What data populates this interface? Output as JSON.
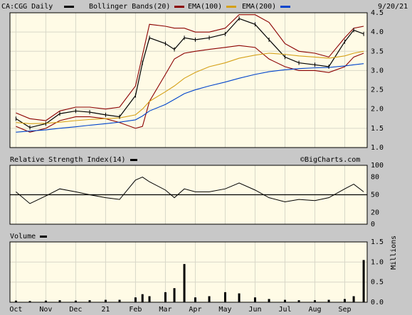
{
  "header": {
    "ticker_label": "CA:CGG Daily",
    "bollinger_label": "Bollinger Bands(20)",
    "ema100_label": "EMA(100)",
    "ema200_label": "EMA(200)",
    "date_label": "9/20/21"
  },
  "rsi_panel": {
    "title": "Relative Strength Index(14)",
    "watermark": "©BigCharts.com"
  },
  "volume_panel": {
    "title": "Volume",
    "unit_label": "Millions"
  },
  "colors": {
    "price": "#000000",
    "bollinger": "#8b0000",
    "ema100": "#d4a017",
    "ema200": "#0044cc",
    "panel_bg": "#fffbe6",
    "frame_bg": "#c8c8c8",
    "grid": "#d8d8c8"
  },
  "chart_data": [
    {
      "type": "line",
      "panel": "price",
      "xlabel": "",
      "ylabel": "",
      "x_tick_labels": [
        "Oct",
        "Nov",
        "Dec",
        "21",
        "Feb",
        "Mar",
        "Apr",
        "May",
        "Jun",
        "Jul",
        "Aug",
        "Sep"
      ],
      "ylim": [
        1.0,
        4.5
      ],
      "y_ticks": [
        "1.0",
        "1.5",
        "2.0",
        "2.5",
        "3.0",
        "3.5",
        "4.0",
        "4.5"
      ],
      "grid": true,
      "legend": "top",
      "x": [
        "Oct 1",
        "Oct 15",
        "Nov 1",
        "Nov 15",
        "Dec 1",
        "Dec 15",
        "Jan 1",
        "Jan 15",
        "Feb 1",
        "Feb 8",
        "Feb 15",
        "Mar 1",
        "Mar 10",
        "Mar 20",
        "Apr 1",
        "Apr 15",
        "May 1",
        "May 15",
        "Jun 1",
        "Jun 15",
        "Jul 1",
        "Jul 15",
        "Aug 1",
        "Aug 15",
        "Sep 1",
        "Sep 10",
        "Sep 20"
      ],
      "series": [
        {
          "name": "CA:CGG Daily",
          "values": [
            1.75,
            1.52,
            1.62,
            1.88,
            1.95,
            1.92,
            1.85,
            1.8,
            2.35,
            3.2,
            3.85,
            3.7,
            3.55,
            3.85,
            3.8,
            3.85,
            3.95,
            4.35,
            4.2,
            3.8,
            3.35,
            3.2,
            3.15,
            3.1,
            3.75,
            4.05,
            3.95
          ]
        },
        {
          "name": "Bollinger upper",
          "values": [
            1.9,
            1.75,
            1.7,
            1.95,
            2.05,
            2.05,
            2.0,
            2.05,
            2.6,
            3.4,
            4.2,
            4.15,
            4.1,
            4.1,
            4.0,
            4.0,
            4.1,
            4.45,
            4.45,
            4.25,
            3.7,
            3.5,
            3.45,
            3.35,
            3.85,
            4.1,
            4.15
          ]
        },
        {
          "name": "Bollinger lower",
          "values": [
            1.55,
            1.4,
            1.5,
            1.7,
            1.8,
            1.8,
            1.75,
            1.65,
            1.5,
            1.55,
            2.2,
            2.9,
            3.3,
            3.45,
            3.5,
            3.55,
            3.6,
            3.65,
            3.6,
            3.3,
            3.1,
            3.0,
            3.0,
            2.95,
            3.1,
            3.35,
            3.45
          ]
        },
        {
          "name": "EMA(100)",
          "values": [
            1.65,
            1.62,
            1.63,
            1.66,
            1.7,
            1.73,
            1.75,
            1.77,
            1.85,
            2.0,
            2.2,
            2.45,
            2.6,
            2.8,
            2.95,
            3.1,
            3.2,
            3.32,
            3.4,
            3.45,
            3.42,
            3.38,
            3.35,
            3.32,
            3.38,
            3.45,
            3.5
          ]
        },
        {
          "name": "EMA(200)",
          "values": [
            1.4,
            1.43,
            1.46,
            1.5,
            1.54,
            1.58,
            1.62,
            1.66,
            1.72,
            1.82,
            1.95,
            2.12,
            2.25,
            2.4,
            2.5,
            2.6,
            2.7,
            2.8,
            2.9,
            2.97,
            3.02,
            3.05,
            3.07,
            3.08,
            3.12,
            3.15,
            3.18
          ]
        }
      ]
    },
    {
      "type": "line",
      "panel": "rsi",
      "title": "Relative Strength Index(14)",
      "ylim": [
        0,
        100
      ],
      "y_ticks": [
        "0",
        "20",
        "50",
        "80",
        "100"
      ],
      "reference_line": 50,
      "x": [
        "Oct 1",
        "Oct 15",
        "Nov 1",
        "Nov 15",
        "Dec 1",
        "Dec 15",
        "Jan 1",
        "Jan 15",
        "Feb 1",
        "Feb 8",
        "Feb 15",
        "Mar 1",
        "Mar 10",
        "Mar 20",
        "Apr 1",
        "Apr 15",
        "May 1",
        "May 15",
        "Jun 1",
        "Jun 15",
        "Jul 1",
        "Jul 15",
        "Aug 1",
        "Aug 15",
        "Sep 1",
        "Sep 10",
        "Sep 20"
      ],
      "series": [
        {
          "name": "Relative Strength Index(14)",
          "values": [
            55,
            35,
            48,
            60,
            55,
            50,
            45,
            42,
            75,
            80,
            72,
            58,
            45,
            60,
            55,
            55,
            60,
            70,
            58,
            45,
            38,
            42,
            40,
            45,
            60,
            68,
            55
          ]
        }
      ]
    },
    {
      "type": "bar",
      "panel": "volume",
      "title": "Volume",
      "ylabel": "Millions",
      "ylim": [
        0,
        1.5
      ],
      "y_ticks": [
        "0.0",
        "0.5",
        "1.0",
        "1.5"
      ],
      "x": [
        "Oct 1",
        "Oct 15",
        "Nov 1",
        "Nov 15",
        "Dec 1",
        "Dec 15",
        "Jan 1",
        "Jan 15",
        "Feb 1",
        "Feb 8",
        "Feb 15",
        "Mar 1",
        "Mar 10",
        "Mar 20",
        "Apr 1",
        "Apr 15",
        "May 1",
        "May 15",
        "Jun 1",
        "Jun 15",
        "Jul 1",
        "Jul 15",
        "Aug 1",
        "Aug 15",
        "Sep 1",
        "Sep 10",
        "Sep 20"
      ],
      "values": [
        0.04,
        0.03,
        0.04,
        0.05,
        0.04,
        0.05,
        0.06,
        0.06,
        0.12,
        0.2,
        0.15,
        0.25,
        0.35,
        0.95,
        0.12,
        0.15,
        0.25,
        0.22,
        0.12,
        0.08,
        0.06,
        0.05,
        0.05,
        0.06,
        0.08,
        0.15,
        1.05
      ]
    }
  ]
}
